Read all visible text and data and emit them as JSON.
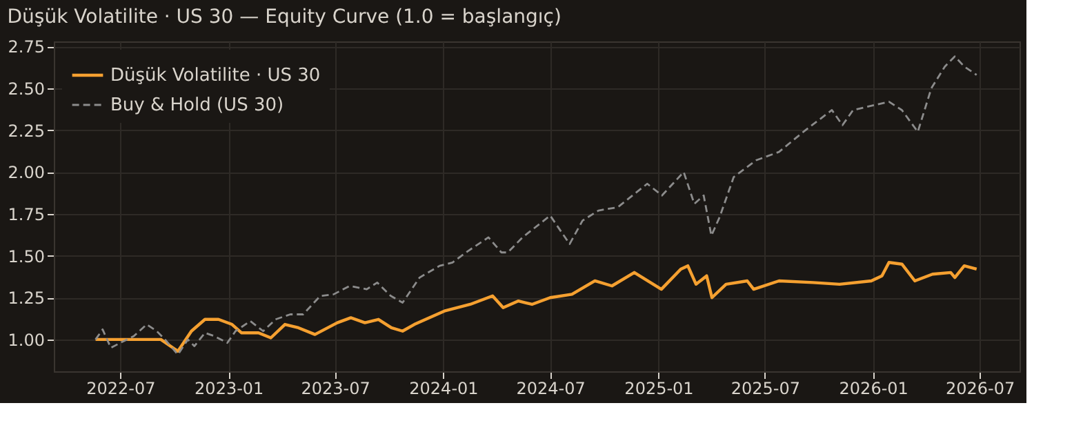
{
  "chart_data": {
    "type": "line",
    "title": "Düşük Volatilite · US 30 — Equity Curve (1.0 = başlangıç)",
    "xlim": [
      "2022-03-10",
      "2026-09-07"
    ],
    "xticks": [
      "2022-07",
      "2023-01",
      "2023-07",
      "2024-01",
      "2024-07",
      "2025-01",
      "2025-07",
      "2026-01",
      "2026-07"
    ],
    "ylim": [
      0.81,
      2.78
    ],
    "yticks": [
      {
        "value": 1.0,
        "label": "1.00"
      },
      {
        "value": 1.25,
        "label": "1.25"
      },
      {
        "value": 1.5,
        "label": "1.50"
      },
      {
        "value": 1.75,
        "label": "1.75"
      },
      {
        "value": 2.0,
        "label": "2.00"
      },
      {
        "value": 2.25,
        "label": "2.25"
      },
      {
        "value": 2.5,
        "label": "2.50"
      },
      {
        "value": 2.75,
        "label": "2.75"
      }
    ],
    "grid": true,
    "legend": "top left",
    "series": [
      {
        "name": "Düşük Volatilite · US 30",
        "color": "#f5a030",
        "line_style": "solid",
        "x": [
          "2022-05-20",
          "2022-09-08",
          "2022-10-07",
          "2022-10-30",
          "2022-11-22",
          "2022-12-15",
          "2023-01-07",
          "2023-01-23",
          "2023-02-21",
          "2023-03-14",
          "2023-04-07",
          "2023-04-30",
          "2023-05-28",
          "2023-07-05",
          "2023-07-28",
          "2023-08-21",
          "2023-09-13",
          "2023-10-05",
          "2023-10-24",
          "2023-11-13",
          "2024-01-03",
          "2024-02-16",
          "2024-03-25",
          "2024-04-12",
          "2024-05-08",
          "2024-05-31",
          "2024-07-01",
          "2024-08-07",
          "2024-09-15",
          "2024-10-14",
          "2024-11-21",
          "2025-01-06",
          "2025-02-08",
          "2025-02-20",
          "2025-03-06",
          "2025-03-24",
          "2025-04-02",
          "2025-04-26",
          "2025-06-01",
          "2025-06-12",
          "2025-07-25",
          "2025-09-21",
          "2025-11-05",
          "2025-12-29",
          "2026-01-16",
          "2026-01-28",
          "2026-02-19",
          "2026-03-13",
          "2026-04-12",
          "2026-05-13",
          "2026-05-20",
          "2026-06-05",
          "2026-06-26"
        ],
        "values": [
          1.0,
          1.0,
          0.93,
          1.05,
          1.12,
          1.12,
          1.09,
          1.04,
          1.04,
          1.01,
          1.09,
          1.07,
          1.03,
          1.1,
          1.13,
          1.1,
          1.12,
          1.07,
          1.05,
          1.09,
          1.17,
          1.21,
          1.26,
          1.19,
          1.23,
          1.21,
          1.25,
          1.27,
          1.35,
          1.32,
          1.4,
          1.3,
          1.42,
          1.44,
          1.33,
          1.38,
          1.25,
          1.33,
          1.35,
          1.3,
          1.35,
          1.34,
          1.33,
          1.35,
          1.38,
          1.46,
          1.45,
          1.35,
          1.39,
          1.4,
          1.37,
          1.44,
          1.42
        ]
      },
      {
        "name": "Buy & Hold (US 30)",
        "color": "#8c8c8c",
        "line_style": "dashed",
        "x": [
          "2022-05-20",
          "2022-06-01",
          "2022-06-15",
          "2022-07-01",
          "2022-07-24",
          "2022-08-15",
          "2022-09-01",
          "2022-09-15",
          "2022-10-07",
          "2022-10-24",
          "2022-11-04",
          "2022-11-22",
          "2022-12-08",
          "2022-12-30",
          "2023-01-13",
          "2023-02-07",
          "2023-03-01",
          "2023-03-22",
          "2023-04-16",
          "2023-05-08",
          "2023-06-06",
          "2023-06-29",
          "2023-07-26",
          "2023-08-24",
          "2023-09-11",
          "2023-10-04",
          "2023-10-24",
          "2023-11-22",
          "2023-12-26",
          "2024-01-17",
          "2024-02-13",
          "2024-03-18",
          "2024-04-09",
          "2024-04-20",
          "2024-05-15",
          "2024-07-01",
          "2024-08-03",
          "2024-08-25",
          "2024-09-21",
          "2024-10-24",
          "2024-12-13",
          "2025-01-07",
          "2025-02-13",
          "2025-03-03",
          "2025-03-19",
          "2025-04-01",
          "2025-04-15",
          "2025-05-09",
          "2025-06-16",
          "2025-07-25",
          "2025-09-08",
          "2025-10-23",
          "2025-11-10",
          "2025-11-28",
          "2026-01-28",
          "2026-02-19",
          "2026-03-18",
          "2026-04-10",
          "2026-05-03",
          "2026-05-20",
          "2026-06-05",
          "2026-06-26"
        ],
        "values": [
          1.0,
          1.06,
          0.95,
          0.98,
          1.02,
          1.09,
          1.05,
          1.0,
          0.91,
          1.0,
          0.96,
          1.04,
          1.02,
          0.98,
          1.05,
          1.11,
          1.05,
          1.12,
          1.15,
          1.15,
          1.26,
          1.27,
          1.32,
          1.3,
          1.34,
          1.26,
          1.22,
          1.37,
          1.44,
          1.46,
          1.53,
          1.61,
          1.52,
          1.52,
          1.61,
          1.74,
          1.57,
          1.71,
          1.77,
          1.79,
          1.93,
          1.86,
          2.0,
          1.81,
          1.86,
          1.62,
          1.73,
          1.97,
          2.07,
          2.12,
          2.25,
          2.37,
          2.28,
          2.37,
          2.42,
          2.37,
          2.24,
          2.5,
          2.63,
          2.69,
          2.63,
          2.58
        ]
      }
    ]
  }
}
